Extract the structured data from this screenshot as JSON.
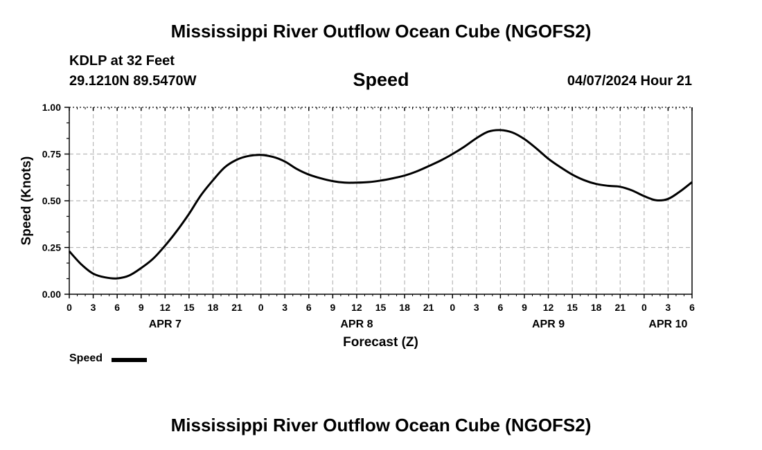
{
  "header": {
    "title": "Mississippi River Outflow Ocean Cube (NGOFS2)",
    "station": "KDLP at 32 Feet",
    "coords": "29.1210N  89.5470W",
    "variable": "Speed",
    "datetime": "04/07/2024 Hour 21"
  },
  "footer": {
    "title": "Mississippi River Outflow Ocean Cube (NGOFS2)"
  },
  "legend": {
    "label": "Speed",
    "color": "#000000"
  },
  "chart_data": {
    "type": "line",
    "title": "Speed",
    "xlabel": "Forecast (Z)",
    "ylabel": "Speed (Knots)",
    "xlim": [
      0,
      78
    ],
    "ylim": [
      0,
      1
    ],
    "yticks": [
      0,
      0.25,
      0.5,
      0.75,
      1.0
    ],
    "ytick_labels": [
      "0.00",
      "0.25",
      "0.50",
      "0.75",
      "1.00"
    ],
    "xticks": [
      0,
      3,
      6,
      9,
      12,
      15,
      18,
      21,
      24,
      27,
      30,
      33,
      36,
      39,
      42,
      45,
      48,
      51,
      54,
      57,
      60,
      63,
      66,
      69,
      72,
      75,
      78
    ],
    "xtick_labels": [
      "0",
      "3",
      "6",
      "9",
      "12",
      "15",
      "18",
      "21",
      "0",
      "3",
      "6",
      "9",
      "12",
      "15",
      "18",
      "21",
      "0",
      "3",
      "6",
      "9",
      "12",
      "15",
      "18",
      "21",
      "0",
      "3",
      "6"
    ],
    "date_labels": [
      {
        "x": 12,
        "label": "APR 7"
      },
      {
        "x": 36,
        "label": "APR 8"
      },
      {
        "x": 60,
        "label": "APR 9"
      },
      {
        "x": 75,
        "label": "APR 10"
      }
    ],
    "grid": true,
    "series": [
      {
        "name": "Speed",
        "x": [
          0,
          1.5,
          3,
          4.5,
          6,
          7.5,
          9,
          10.5,
          12,
          13.5,
          15,
          16.5,
          18,
          19.5,
          21,
          22.5,
          24,
          25.5,
          27,
          28.5,
          30,
          31.5,
          33,
          34.5,
          36,
          37.5,
          39,
          40.5,
          42,
          43.5,
          45,
          46.5,
          48,
          49.5,
          51,
          52.5,
          54,
          55.5,
          57,
          58.5,
          60,
          61.5,
          63,
          64.5,
          66,
          67.5,
          69,
          70.5,
          72,
          73.5,
          75,
          76.5,
          78
        ],
        "values": [
          0.23,
          0.16,
          0.11,
          0.09,
          0.085,
          0.1,
          0.14,
          0.19,
          0.26,
          0.34,
          0.43,
          0.53,
          0.61,
          0.68,
          0.72,
          0.74,
          0.745,
          0.735,
          0.71,
          0.67,
          0.64,
          0.62,
          0.605,
          0.597,
          0.597,
          0.6,
          0.608,
          0.62,
          0.635,
          0.657,
          0.685,
          0.715,
          0.75,
          0.79,
          0.835,
          0.87,
          0.878,
          0.865,
          0.83,
          0.78,
          0.725,
          0.68,
          0.64,
          0.61,
          0.59,
          0.58,
          0.575,
          0.555,
          0.525,
          0.503,
          0.51,
          0.55,
          0.6
        ]
      }
    ]
  }
}
